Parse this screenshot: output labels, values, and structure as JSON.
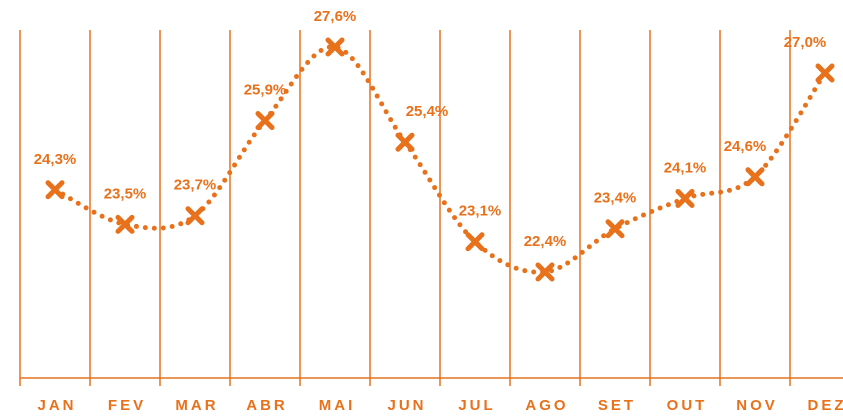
{
  "chart_data": {
    "type": "line",
    "categories": [
      "JAN",
      "FEV",
      "MAR",
      "ABR",
      "MAI",
      "JUN",
      "JUL",
      "AGO",
      "SET",
      "OUT",
      "NOV",
      "DEZ"
    ],
    "series": [
      {
        "color": "#e8711c",
        "values": [
          24.3,
          23.5,
          23.7,
          25.9,
          27.6,
          25.4,
          23.1,
          22.4,
          23.4,
          24.1,
          24.6,
          27.0
        ],
        "value_labels": [
          "24,3%",
          "23,5%",
          "23,7%",
          "25,9%",
          "27,6%",
          "25,4%",
          "23,1%",
          "22,4%",
          "23,4%",
          "24,1%",
          "24,6%",
          "27,0%"
        ]
      }
    ]
  }
}
